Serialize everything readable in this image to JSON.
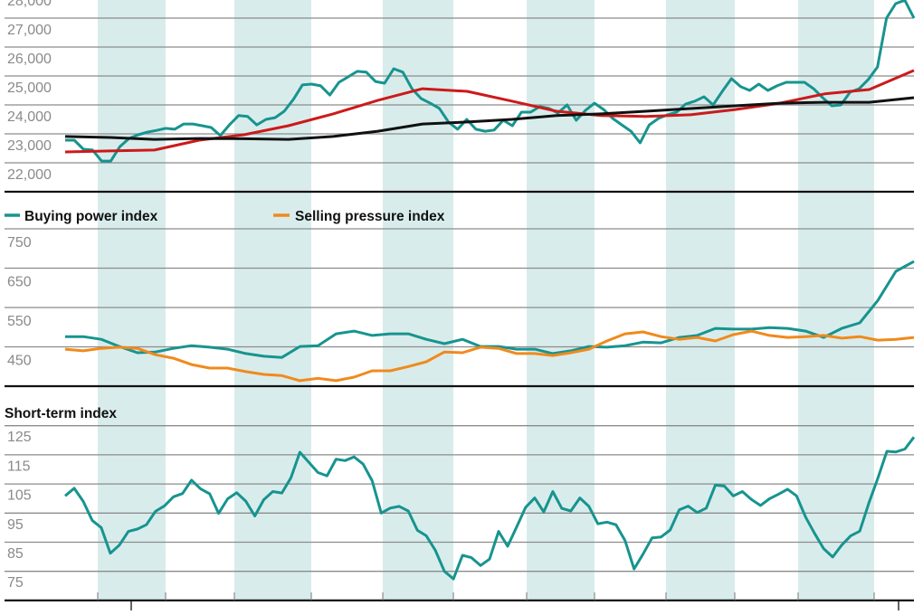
{
  "chart_data": [
    {
      "type": "line",
      "title": "",
      "xlabel": "",
      "ylabel": "",
      "ylim": [
        21000,
        28000
      ],
      "yticks": [
        "22,000",
        "23,000",
        "24,000",
        "25,000",
        "26,000",
        "27,000",
        "28,000"
      ],
      "ytick_values": [
        22000,
        23000,
        24000,
        25000,
        26000,
        27000,
        28000
      ],
      "grid": true,
      "shaded_periods": true,
      "series": [
        {
          "color": "#17948f",
          "values": [
            22780,
            22780,
            22470,
            22440,
            22060,
            22060,
            22560,
            22840,
            22970,
            23060,
            23120,
            23190,
            23160,
            23340,
            23340,
            23280,
            23220,
            22940,
            23310,
            23630,
            23600,
            23310,
            23500,
            23560,
            23780,
            24190,
            24690,
            24720,
            24660,
            24340,
            24780,
            24970,
            25160,
            25130,
            24810,
            24750,
            25250,
            25130,
            24560,
            24220,
            24060,
            23880,
            23410,
            23160,
            23500,
            23160,
            23090,
            23130,
            23470,
            23280,
            23750,
            23750,
            23940,
            23880,
            23720,
            24000,
            23470,
            23810,
            24060,
            23840,
            23530,
            23310,
            23090,
            22690,
            23310,
            23530,
            23660,
            23750,
            24030,
            24130,
            24280,
            24000,
            24470,
            24910,
            24630,
            24500,
            24720,
            24500,
            24660,
            24780,
            24780,
            24780,
            24560,
            24250,
            23970,
            24000,
            24440,
            24560,
            24880,
            25310,
            27000,
            27500,
            27620,
            27000
          ]
        },
        {
          "color": "#cc1a1a",
          "values": [
            22375,
            22410,
            22440,
            22780,
            22970,
            23280,
            23690,
            24160,
            24560,
            24470,
            24130,
            23780,
            23630,
            23600,
            23660,
            23840,
            24060,
            24380,
            24530,
            25190
          ]
        },
        {
          "color": "#111111",
          "values": [
            22910,
            22875,
            22810,
            22840,
            22830,
            22810,
            22910,
            23090,
            23340,
            23410,
            23500,
            23630,
            23690,
            23780,
            23875,
            23970,
            24060,
            24090,
            24090,
            24250
          ]
        }
      ]
    },
    {
      "type": "line",
      "title": "",
      "ylim": [
        350,
        750
      ],
      "yticks": [
        "450",
        "550",
        "650",
        "750"
      ],
      "ytick_values": [
        450,
        550,
        650,
        750
      ],
      "grid": true,
      "legend_position": "top-left",
      "series": [
        {
          "name": "Buying power index",
          "color": "#17948f",
          "values": [
            476,
            476,
            469,
            451,
            435,
            437,
            446,
            453,
            449,
            444,
            433,
            426,
            423,
            451,
            453,
            483,
            490,
            479,
            483,
            483,
            469,
            458,
            469,
            451,
            451,
            444,
            444,
            433,
            440,
            451,
            449,
            453,
            462,
            460,
            474,
            479,
            497,
            495,
            495,
            499,
            497,
            490,
            474,
            497,
            511,
            568,
            642,
            667
          ]
        },
        {
          "name": "Selling pressure index",
          "color": "#f08a1c",
          "values": [
            444,
            440,
            446,
            449,
            446,
            430,
            421,
            405,
            396,
            396,
            387,
            380,
            377,
            364,
            370,
            364,
            373,
            389,
            389,
            400,
            412,
            437,
            435,
            449,
            446,
            433,
            433,
            428,
            435,
            444,
            465,
            483,
            488,
            476,
            469,
            474,
            465,
            481,
            490,
            479,
            474,
            476,
            479,
            472,
            476,
            467,
            469,
            474
          ]
        }
      ]
    },
    {
      "type": "line",
      "title": "Short-term index",
      "ylim": [
        65,
        125
      ],
      "yticks": [
        "75",
        "85",
        "95",
        "105",
        "115",
        "125"
      ],
      "ytick_values": [
        75,
        85,
        95,
        105,
        115,
        125
      ],
      "grid": true,
      "series": [
        {
          "color": "#17948f",
          "values": [
            100.9,
            103.5,
            99.0,
            92.5,
            90.0,
            81.2,
            84.0,
            88.7,
            89.5,
            91.0,
            95.6,
            97.5,
            100.6,
            101.7,
            106.3,
            103.3,
            101.6,
            94.9,
            99.9,
            102.0,
            99.1,
            94.0,
            99.6,
            102.4,
            101.9,
            107.1,
            115.9,
            112.4,
            108.9,
            107.8,
            113.5,
            113.0,
            114.3,
            111.8,
            106.1,
            95.0,
            96.7,
            97.3,
            95.7,
            89.1,
            87.2,
            82.2,
            75.0,
            72.4,
            80.5,
            79.7,
            77.0,
            79.2,
            88.7,
            83.6,
            90.2,
            97.0,
            100.2,
            95.4,
            102.4,
            96.6,
            95.7,
            100.2,
            97.3,
            91.3,
            91.9,
            91.0,
            85.6,
            75.8,
            80.9,
            86.5,
            86.8,
            89.2,
            96.1,
            97.4,
            95.2,
            96.7,
            104.6,
            104.3,
            100.9,
            102.4,
            99.7,
            97.6,
            99.9,
            101.5,
            103.2,
            100.9,
            93.6,
            88.0,
            82.8,
            79.9,
            84.0,
            87.2,
            88.8,
            98.4,
            107.0,
            116.2,
            116.0,
            117.0,
            121.1
          ]
        }
      ]
    }
  ],
  "colors": {
    "band": "#d9ecec",
    "grid": "#8c8c8c",
    "axis": "#111111"
  }
}
